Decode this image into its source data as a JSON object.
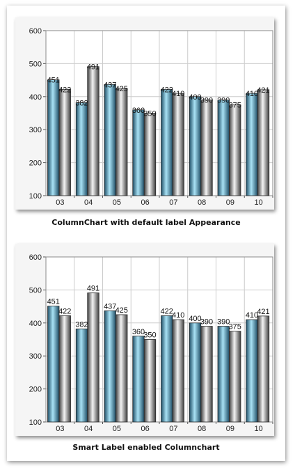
{
  "chart_data": [
    {
      "type": "bar",
      "title": "",
      "caption": "ColumnChart with default label Appearance",
      "categories": [
        "03",
        "04",
        "05",
        "06",
        "07",
        "08",
        "09",
        "10"
      ],
      "series": [
        {
          "values": [
            451,
            382,
            437,
            360,
            422,
            400,
            390,
            410
          ]
        },
        {
          "values": [
            422,
            491,
            425,
            350,
            410,
            390,
            375,
            421
          ]
        }
      ],
      "ylim": [
        100,
        600
      ],
      "yticks": [
        "100",
        "200",
        "300",
        "400",
        "500",
        "600"
      ],
      "grid": true,
      "data_labels": true,
      "smart_labels": false
    },
    {
      "type": "bar",
      "title": "",
      "caption": "Smart Label enabled Columnchart",
      "categories": [
        "03",
        "04",
        "05",
        "06",
        "07",
        "08",
        "09",
        "10"
      ],
      "series": [
        {
          "values": [
            451,
            382,
            437,
            360,
            422,
            400,
            390,
            410
          ]
        },
        {
          "values": [
            422,
            491,
            425,
            350,
            410,
            390,
            375,
            421
          ]
        }
      ],
      "ylim": [
        100,
        600
      ],
      "yticks": [
        "100",
        "200",
        "300",
        "400",
        "500",
        "600"
      ],
      "grid": true,
      "data_labels": true,
      "smart_labels": true
    }
  ],
  "colors": {
    "series1_dark": "#1f4e66",
    "series1_light": "#a9e2f5",
    "series2_dark": "#3f3f3f",
    "series2_light": "#f4f4f4"
  }
}
